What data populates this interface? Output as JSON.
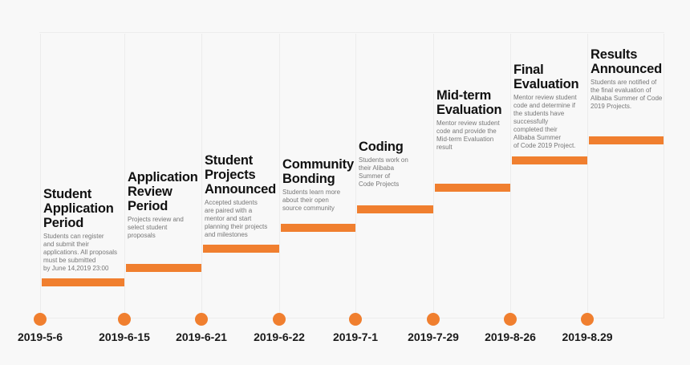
{
  "timeline": {
    "accent_color": "#f07f2f",
    "milestones": [
      {
        "date": "2019-5-6",
        "title": "Student\nApplication\nPeriod",
        "description": "Students can register\nand submit their\napplications.  All proposals\nmust be submitted\nby June 14,2019 23:00"
      },
      {
        "date": "2019-6-15",
        "title": "Application\nReview\nPeriod",
        "description": "Projects review and\nselect student\nproposals"
      },
      {
        "date": "2019-6-21",
        "title": "Student\nProjects\nAnnounced",
        "description": "Accepted students\nare paired with a\nmentor and start\nplanning their projects\nand milestones"
      },
      {
        "date": "2019-6-22",
        "title": "Community\nBonding",
        "description": "Students learn more\nabout their open\nsource community"
      },
      {
        "date": "2019-7-1",
        "title": "Coding",
        "description": "Students work on\ntheir Alibaba\nSummer of\nCode Projects"
      },
      {
        "date": "2019-7-29",
        "title": "Mid-term\nEvaluation",
        "description": "Mentor review student\ncode and provide the\nMid-term Evaluation\nresult"
      },
      {
        "date": "2019-8-26",
        "title": "Final\nEvaluation",
        "description": "Mentor review student\ncode and determine if\nthe students have\nsuccessfully\ncompleted their\nAlibaba Summer\nof Code 2019 Project."
      },
      {
        "date": "2019-8.29",
        "title": "Results\nAnnounced",
        "description": "Students are notified of\nthe final evaluation of\nAlibaba Summer of Code\n2019 Projects."
      }
    ]
  }
}
